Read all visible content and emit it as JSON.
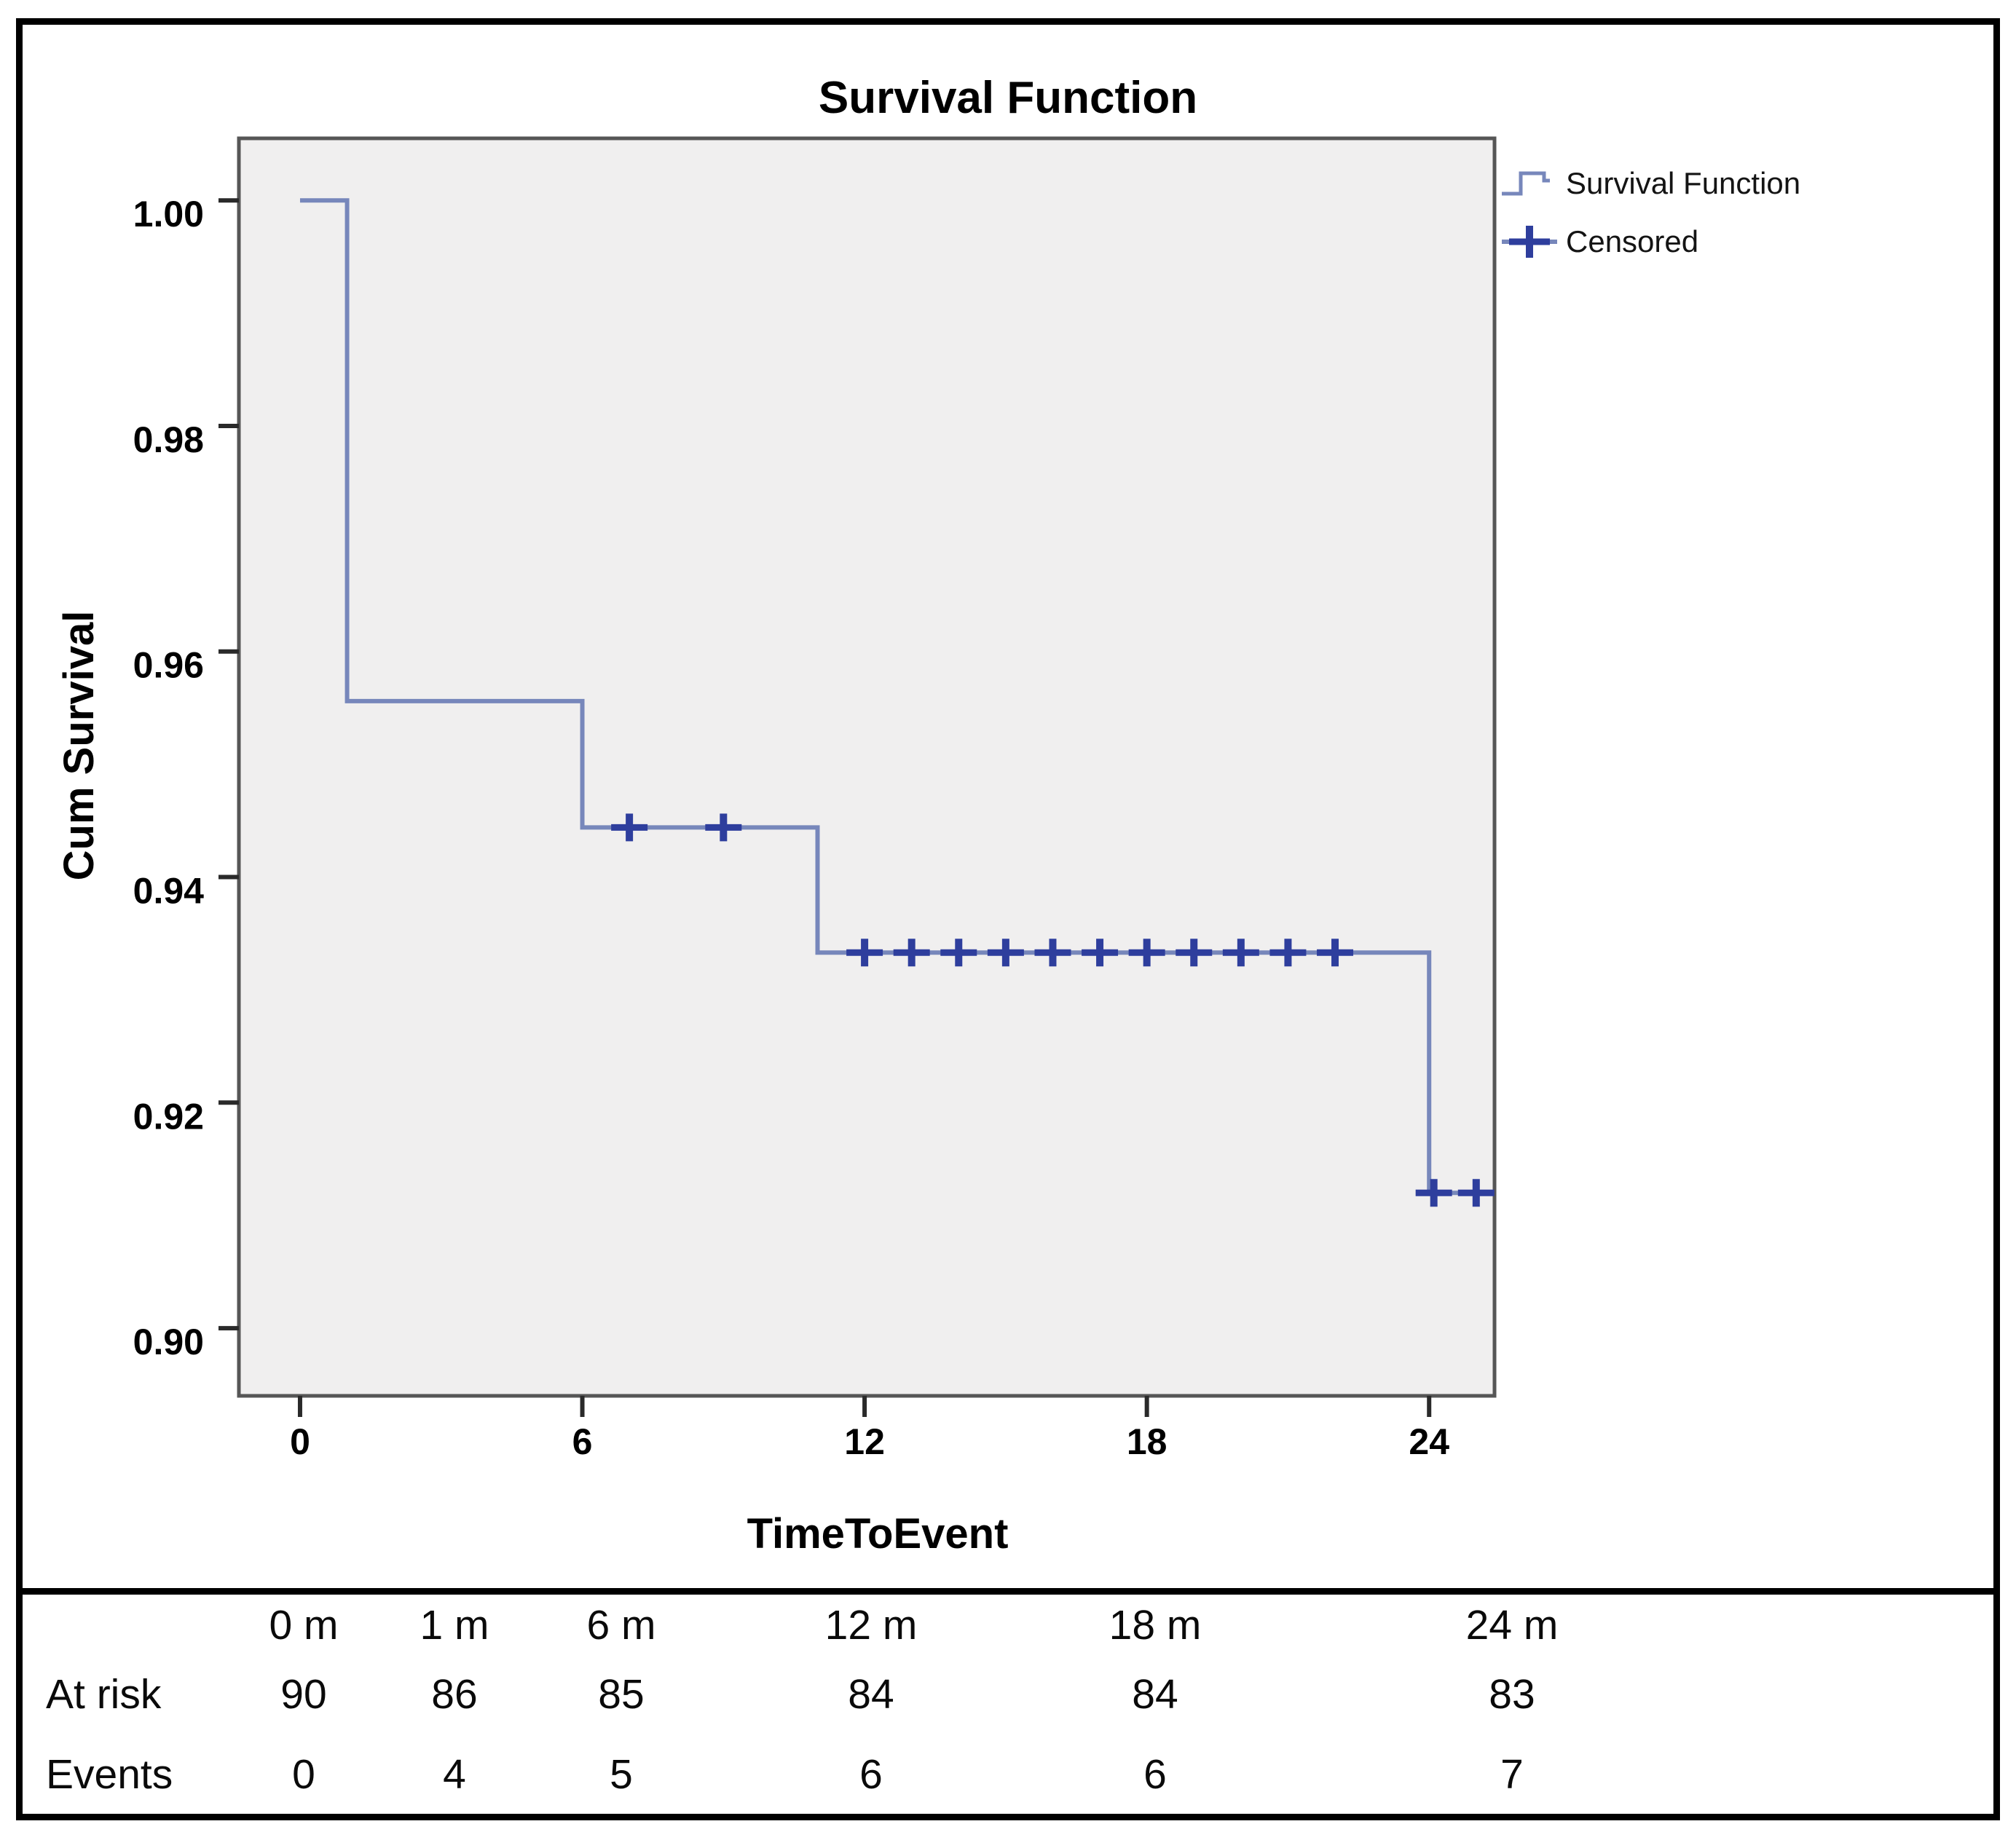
{
  "figure": {
    "legend": {
      "items": [
        {
          "label": "Survival Function",
          "marker": "step-line-icon"
        },
        {
          "label": "Censored",
          "marker": "plus-icon"
        }
      ]
    }
  },
  "chart_data": {
    "type": "line",
    "subtype": "kaplan-meier-step",
    "title": "Survival Function",
    "xlabel": "TimeToEvent",
    "ylabel": "Cum Survival",
    "xlim": [
      -1.3,
      25.39
    ],
    "ylim": [
      0.894,
      1.0055
    ],
    "x_ticks": [
      0,
      6,
      12,
      18,
      24
    ],
    "x_tick_labels": [
      "0",
      "6",
      "12",
      "18",
      "24"
    ],
    "y_ticks": [
      1.0,
      0.98,
      0.96,
      0.94,
      0.92,
      0.9
    ],
    "y_tick_labels": [
      "1.00",
      "0.98",
      "0.96",
      "0.94",
      "0.92",
      "0.90"
    ],
    "grid": false,
    "legend_position": "top-right-outside",
    "series": [
      {
        "name": "Survival Function",
        "steps": [
          {
            "time": 0,
            "survival": 1.0
          },
          {
            "time": 1,
            "survival": 0.9556
          },
          {
            "time": 6,
            "survival": 0.9444
          },
          {
            "time": 11,
            "survival": 0.9333
          },
          {
            "time": 24,
            "survival": 0.912
          }
        ],
        "end_time": 25.3
      }
    ],
    "censored_times": [
      7,
      9,
      12,
      13,
      14,
      15,
      16,
      17,
      18,
      19,
      20,
      21,
      22,
      24.1,
      25
    ]
  },
  "risk_table": {
    "time_headers": [
      "0 m",
      "1 m",
      "6 m",
      "12 m",
      "18 m",
      "24 m"
    ],
    "rows": [
      {
        "label": "At risk",
        "values": [
          "90",
          "86",
          "85",
          "84",
          "84",
          "83"
        ]
      },
      {
        "label": "Events",
        "values": [
          "0",
          "4",
          "5",
          "6",
          "6",
          "7"
        ]
      }
    ]
  },
  "colors": {
    "line": "#7787bb",
    "censor_mark": "#2e3e9d",
    "plot_background": "#f0efef",
    "plot_border": "#565656",
    "tick": "#2a2a2a",
    "figure_border": "#000000",
    "text": "#000000"
  }
}
